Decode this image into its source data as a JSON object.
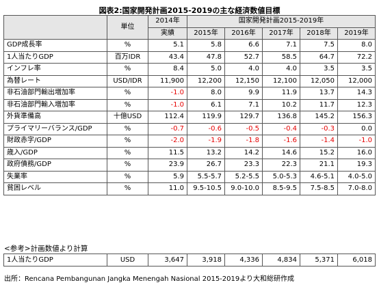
{
  "title": "図表2:国家開発計画2015-2019の主な経済数値目標",
  "header": {
    "unit": "単位",
    "actual_year": "2014年",
    "actual_label": "実績",
    "plan_label": "国家開発計画2015-2019年",
    "years": [
      "2015年",
      "2016年",
      "2017年",
      "2018年",
      "2019年"
    ]
  },
  "rows": [
    {
      "label": "GDP成長率",
      "unit": "%",
      "values": [
        "5.1",
        "5.8",
        "6.6",
        "7.1",
        "7.5",
        "8.0"
      ],
      "neg": [
        false,
        false,
        false,
        false,
        false,
        false
      ]
    },
    {
      "label": "1人当たりGDP",
      "unit": "百万IDR",
      "values": [
        "43.4",
        "47.8",
        "52.7",
        "58.5",
        "64.7",
        "72.2"
      ],
      "neg": [
        false,
        false,
        false,
        false,
        false,
        false
      ]
    },
    {
      "label": "インフレ率",
      "unit": "%",
      "values": [
        "8.4",
        "5.0",
        "4.0",
        "4.0",
        "3.5",
        "3.5"
      ],
      "neg": [
        false,
        false,
        false,
        false,
        false,
        false
      ]
    },
    {
      "label": "為替レート",
      "unit": "USD/IDR",
      "values": [
        "11,900",
        "12,200",
        "12,150",
        "12,100",
        "12,050",
        "12,000"
      ],
      "neg": [
        false,
        false,
        false,
        false,
        false,
        false
      ]
    },
    {
      "label": "非石油部門輸出増加率",
      "unit": "%",
      "values": [
        "-1.0",
        "8.0",
        "9.9",
        "11.9",
        "13.7",
        "14.3"
      ],
      "neg": [
        true,
        false,
        false,
        false,
        false,
        false
      ]
    },
    {
      "label": "非石油部門輸入増加率",
      "unit": "%",
      "values": [
        "-1.0",
        "6.1",
        "7.1",
        "10.2",
        "11.7",
        "12.3"
      ],
      "neg": [
        true,
        false,
        false,
        false,
        false,
        false
      ]
    },
    {
      "label": "外貨準備高",
      "unit": "十億USD",
      "values": [
        "112.4",
        "119.9",
        "129.7",
        "136.8",
        "145.2",
        "156.3"
      ],
      "neg": [
        false,
        false,
        false,
        false,
        false,
        false
      ]
    },
    {
      "label": "プライマリーバランス/GDP",
      "unit": "%",
      "values": [
        "-0.7",
        "-0.6",
        "-0.5",
        "-0.4",
        "-0.3",
        "0.0"
      ],
      "neg": [
        true,
        true,
        true,
        true,
        true,
        false
      ]
    },
    {
      "label": "財政赤字/GDP",
      "unit": "%",
      "values": [
        "-2.0",
        "-1.9",
        "-1.8",
        "-1.6",
        "-1.4",
        "-1.0"
      ],
      "neg": [
        true,
        true,
        true,
        true,
        true,
        true
      ]
    },
    {
      "label": "歳入/GDP",
      "unit": "%",
      "values": [
        "11.5",
        "13.2",
        "14.2",
        "14.6",
        "15.2",
        "16.0"
      ],
      "neg": [
        false,
        false,
        false,
        false,
        false,
        false
      ]
    },
    {
      "label": "政府債務/GDP",
      "unit": "%",
      "values": [
        "23.9",
        "26.7",
        "23.3",
        "22.3",
        "21.1",
        "19.3"
      ],
      "neg": [
        false,
        false,
        false,
        false,
        false,
        false
      ]
    },
    {
      "label": "失業率",
      "unit": "%",
      "values": [
        "5.9",
        "5.5-5.7",
        "5.2-5.5",
        "5.0-5.3",
        "4.6-5.1",
        "4.0-5.0"
      ],
      "neg": [
        false,
        false,
        false,
        false,
        false,
        false
      ]
    },
    {
      "label": "貧困レベル",
      "unit": "%",
      "values": [
        "11.0",
        "9.5-10.5",
        "9.0-10.0",
        "8.5-9.5",
        "7.5-8.5",
        "7.0-8.0"
      ],
      "neg": [
        false,
        false,
        false,
        false,
        false,
        false
      ]
    }
  ],
  "reference": {
    "title": "<参考>計画数値より計算",
    "row": {
      "label": "1人当たりGDP",
      "unit": "USD",
      "values": [
        "3,647",
        "3,918",
        "4,336",
        "4,834",
        "5,371",
        "6,018"
      ]
    }
  },
  "source": "出所：Rencana Pembangunan Jangka Menengah Nasional 2015-2019より大和総研作成",
  "colors": {
    "negative": "#e60000",
    "header_bg": "#e6e6e6",
    "border": "#555555"
  }
}
